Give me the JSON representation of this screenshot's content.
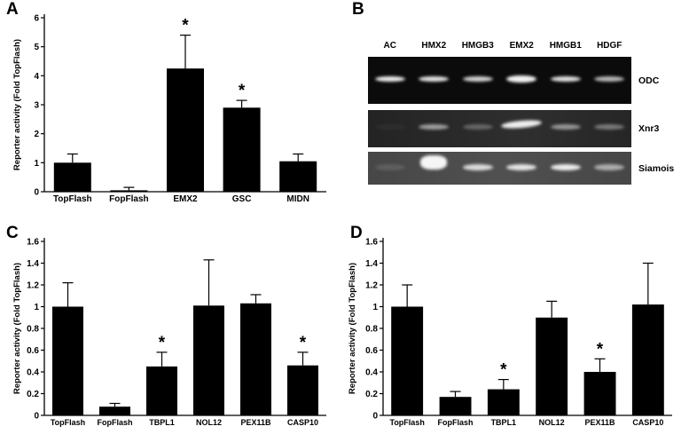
{
  "panels": {
    "a": {
      "label": "A"
    },
    "b": {
      "label": "B"
    },
    "c": {
      "label": "C"
    },
    "d": {
      "label": "D"
    }
  },
  "chart_data": [
    {
      "panel": "A",
      "type": "bar",
      "categories": [
        "TopFlash",
        "FopFlash",
        "EMX2",
        "GSC",
        "MIDN"
      ],
      "values": [
        1.0,
        0.05,
        4.25,
        2.9,
        1.05
      ],
      "errors": [
        0.3,
        0.1,
        1.15,
        0.25,
        0.25
      ],
      "significant": [
        false,
        false,
        true,
        true,
        false
      ],
      "sig_marker": "*",
      "ylabel": "Reporter activity (Fold TopFlash)",
      "xlabel": "",
      "ylim": [
        0,
        6
      ],
      "ytick_step": 1,
      "bar_color": "#000000",
      "grid": false,
      "legend": false
    },
    {
      "panel": "C",
      "type": "bar",
      "categories": [
        "TopFlash",
        "FopFlash",
        "TBPL1",
        "NOL12",
        "PEX11B",
        "CASP10"
      ],
      "values": [
        1.0,
        0.08,
        0.45,
        1.01,
        1.03,
        0.46
      ],
      "errors": [
        0.22,
        0.03,
        0.13,
        0.42,
        0.08,
        0.12
      ],
      "significant": [
        false,
        false,
        true,
        false,
        false,
        true
      ],
      "sig_marker": "*",
      "ylabel": "Reporter activity (Fold TopFlash)",
      "xlabel": "",
      "ylim": [
        0,
        1.6
      ],
      "ytick_step": 0.2,
      "bar_color": "#000000",
      "grid": false,
      "legend": false
    },
    {
      "panel": "D",
      "type": "bar",
      "categories": [
        "TopFlash",
        "FopFlash",
        "TBPL1",
        "NOL12",
        "PEX11B",
        "CASP10"
      ],
      "values": [
        1.0,
        0.17,
        0.24,
        0.9,
        0.4,
        1.02
      ],
      "errors": [
        0.2,
        0.05,
        0.09,
        0.15,
        0.12,
        0.38
      ],
      "significant": [
        false,
        false,
        true,
        false,
        true,
        false
      ],
      "sig_marker": "*",
      "ylabel": "Reporter activity (Fold TopFlash)",
      "xlabel": "",
      "ylim": [
        0,
        1.6
      ],
      "ytick_step": 0.2,
      "bar_color": "#000000",
      "grid": false,
      "legend": false
    }
  ],
  "gel": {
    "panel": "B",
    "lanes": [
      "AC",
      "HMX2",
      "HMGB3",
      "EMX2",
      "HMGB1",
      "HDGF"
    ],
    "rows": [
      {
        "label": "ODC",
        "background": "#0b0b0b",
        "bands": [
          0.92,
          0.88,
          0.82,
          0.95,
          0.88,
          0.7
        ]
      },
      {
        "label": "Xnr3",
        "background": "#1f1f1f",
        "bands": [
          0.04,
          0.55,
          0.28,
          0.92,
          0.5,
          0.38
        ]
      },
      {
        "label": "Siamois",
        "background": "#3f3f3f",
        "bands": [
          0.12,
          0.95,
          0.8,
          0.85,
          0.9,
          0.55
        ]
      }
    ]
  }
}
